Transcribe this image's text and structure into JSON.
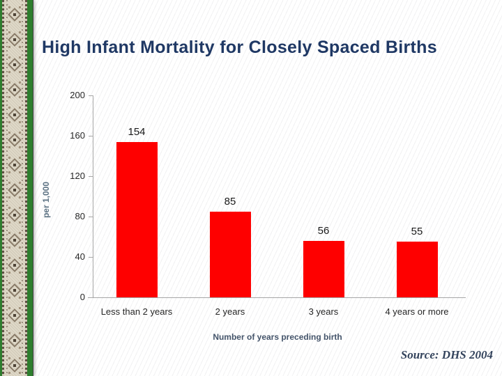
{
  "slide": {
    "title": "High Infant Mortality for Closely Spaced Births",
    "source_label": "Source: DHS 2004"
  },
  "chart_data": {
    "type": "bar",
    "title": "High Infant Mortality for Closely Spaced Births",
    "categories": [
      "Less than 2 years",
      "2 years",
      "3 years",
      "4 years or more"
    ],
    "values": [
      154,
      85,
      56,
      55
    ],
    "data_labels": [
      "154",
      "85",
      "56",
      "55"
    ],
    "xlabel": "Number of years preceding birth",
    "ylabel": "per 1,000",
    "ylim": [
      0,
      200
    ],
    "yticks": [
      0,
      40,
      80,
      120,
      160,
      200
    ],
    "grid": false,
    "legend": false,
    "bar_color": "#FE0000"
  },
  "colors": {
    "title_text": "#1F3864",
    "bar_fill": "#FE0000",
    "axis_line": "#A6A6A6",
    "tick_label_text": "#262626",
    "axis_title_text": "#44546A",
    "y_axis_unit_text": "#5B7182",
    "source_text": "#33435C",
    "border_green": "#2E7E2E",
    "border_beige": "#DFD9C8"
  }
}
